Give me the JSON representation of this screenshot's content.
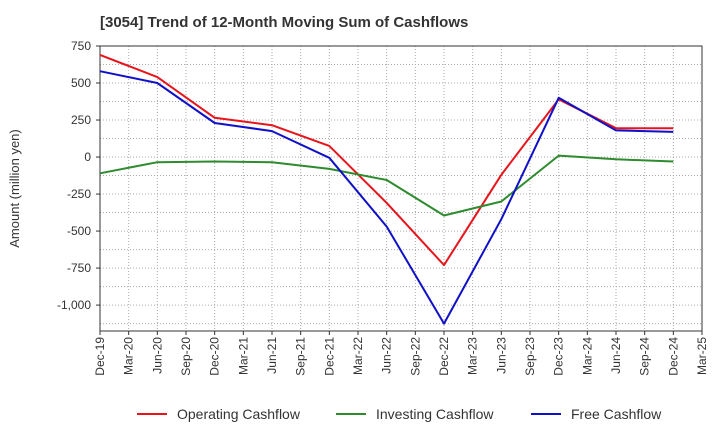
{
  "chart_data": {
    "type": "line",
    "title": "[3054]  Trend of 12-Month Moving Sum of Cashflows",
    "xlabel": "",
    "ylabel": "Amount (million yen)",
    "categories": [
      "Dec-19",
      "Mar-20",
      "Jun-20",
      "Sep-20",
      "Dec-20",
      "Mar-21",
      "Jun-21",
      "Sep-21",
      "Dec-21",
      "Mar-22",
      "Jun-22",
      "Sep-22",
      "Dec-22",
      "Mar-23",
      "Jun-23",
      "Sep-23",
      "Dec-23",
      "Mar-24",
      "Jun-24",
      "Sep-24",
      "Dec-24",
      "Mar-25"
    ],
    "ylim": [
      -1175,
      750
    ],
    "yticks": [
      750,
      500,
      250,
      0,
      -250,
      -500,
      -750,
      -1000
    ],
    "ytick_labels": [
      "750",
      "500",
      "250",
      "0",
      "-250",
      "-500",
      "-750",
      "-1,000"
    ],
    "grid": true,
    "legend_position": "bottom",
    "series": [
      {
        "name": "Operating Cashflow",
        "color": "#e8141b",
        "values": [
          690,
          null,
          540,
          null,
          265,
          null,
          215,
          null,
          75,
          null,
          -310,
          null,
          -730,
          null,
          -120,
          null,
          390,
          null,
          195,
          null,
          195,
          null
        ]
      },
      {
        "name": "Investing Cashflow",
        "color": "#2e8b2e",
        "values": [
          -110,
          null,
          -35,
          null,
          -30,
          null,
          -35,
          null,
          -80,
          null,
          -155,
          null,
          -395,
          null,
          -300,
          null,
          10,
          null,
          -15,
          null,
          -30,
          null
        ]
      },
      {
        "name": "Free Cashflow",
        "color": "#1010c8",
        "values": [
          580,
          null,
          500,
          null,
          230,
          null,
          175,
          null,
          -5,
          null,
          -470,
          null,
          -1125,
          null,
          -420,
          null,
          400,
          null,
          180,
          null,
          170,
          null
        ]
      }
    ]
  }
}
